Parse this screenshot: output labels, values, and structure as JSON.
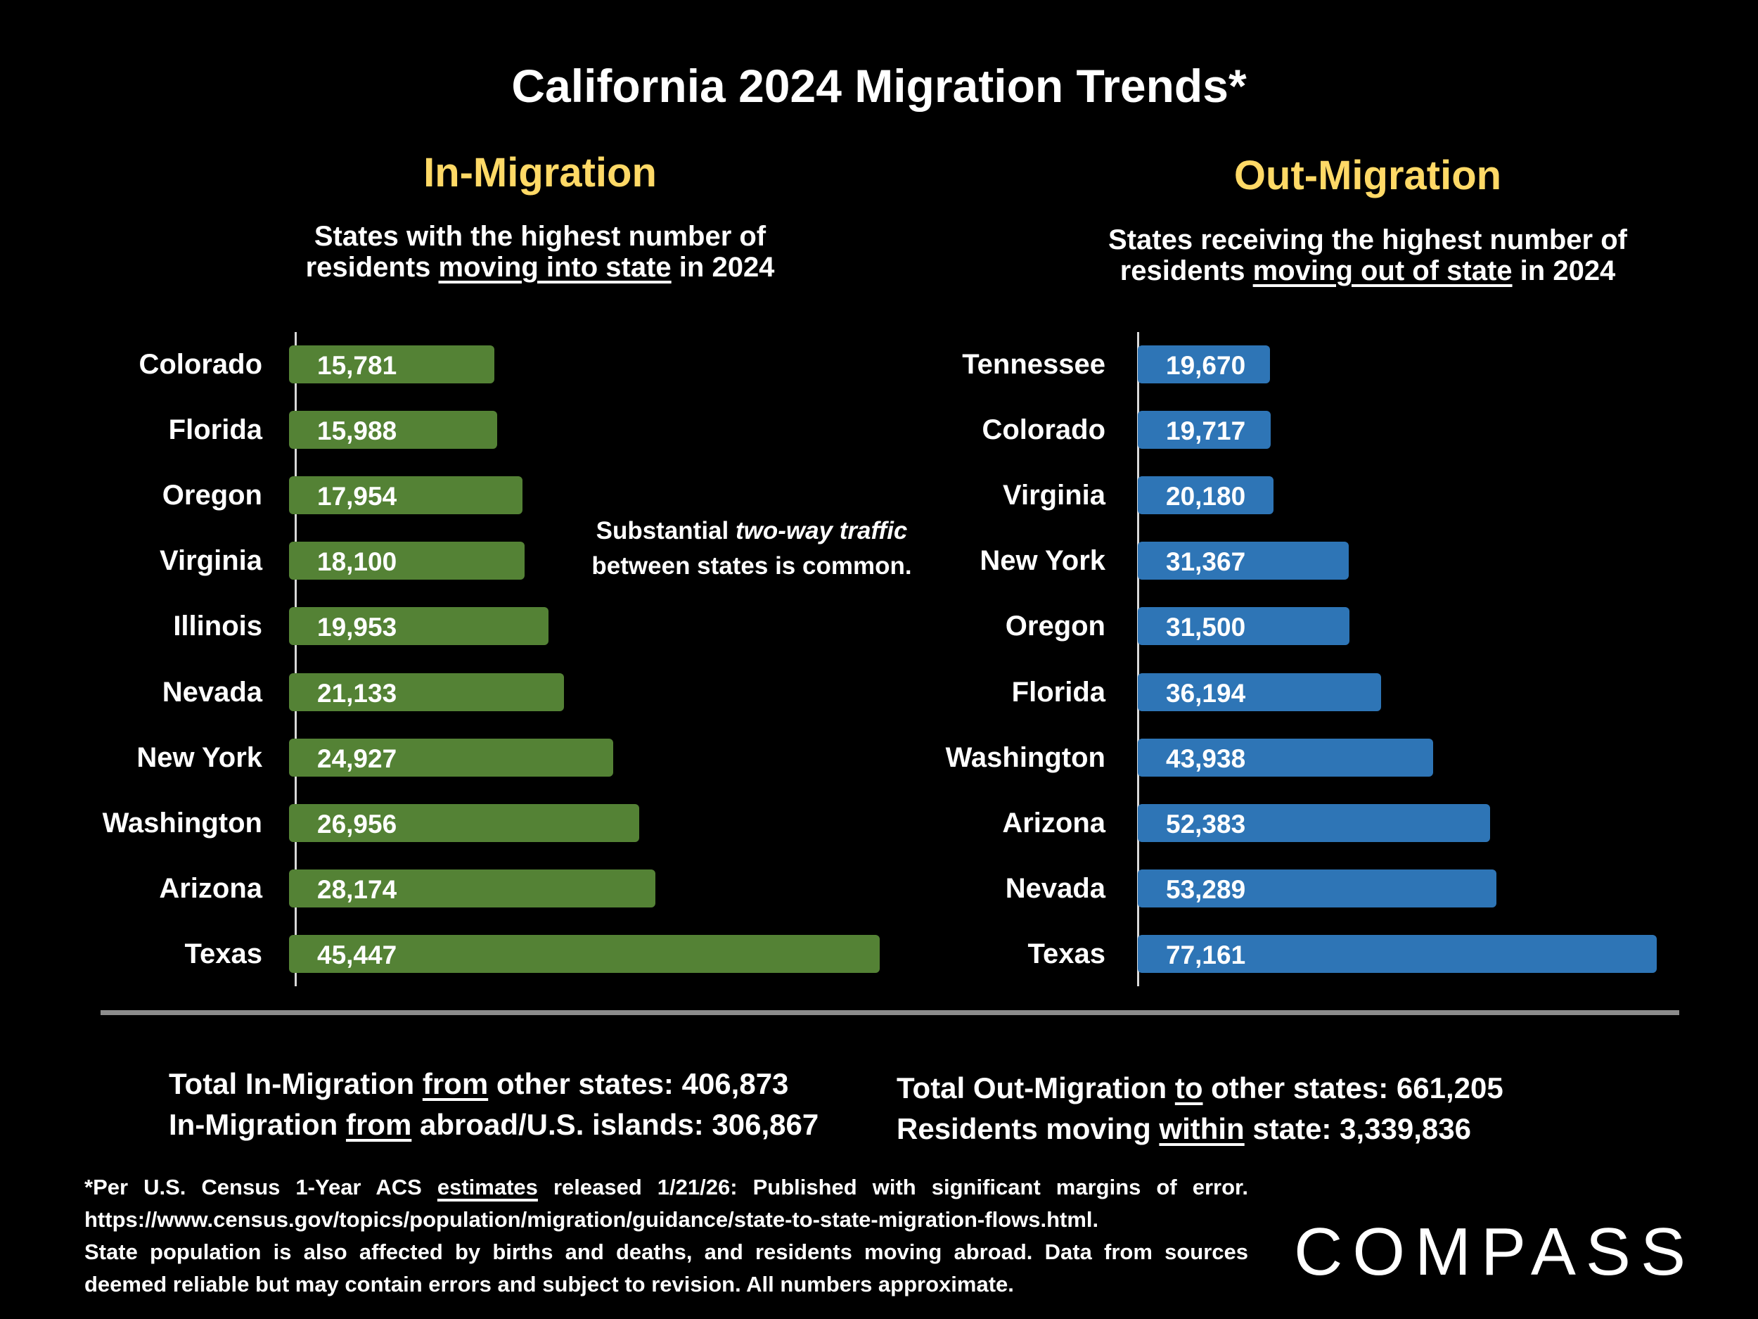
{
  "title": "California 2024 Migration Trends*",
  "annotation": {
    "pre": "Substantial ",
    "italic": "two-way traffic",
    "line2": "between states is common."
  },
  "chart_data": [
    {
      "type": "bar",
      "orientation": "horizontal",
      "title": "In-Migration",
      "subtitle": {
        "line1": "States with the highest number of",
        "pre": "residents ",
        "underlined": "moving into state",
        "post": " in 2024"
      },
      "categories": [
        "Colorado",
        "Florida",
        "Oregon",
        "Virginia",
        "Illinois",
        "Nevada",
        "New York",
        "Washington",
        "Arizona",
        "Texas"
      ],
      "values": [
        15781,
        15988,
        17954,
        18100,
        19953,
        21133,
        24927,
        26956,
        28174,
        45447
      ],
      "value_labels": [
        "15,781",
        "15,988",
        "17,954",
        "18,100",
        "19,953",
        "21,133",
        "24,927",
        "26,956",
        "28,174",
        "45,447"
      ],
      "color": "#548235",
      "grid": false
    },
    {
      "type": "bar",
      "orientation": "horizontal",
      "title": "Out-Migration",
      "subtitle": {
        "line1": "States receiving the highest number of",
        "pre": "residents ",
        "underlined": "moving out of state",
        "post": " in 2024"
      },
      "categories": [
        "Tennessee",
        "Colorado",
        "Virginia",
        "New York",
        "Oregon",
        "Florida",
        "Washington",
        "Arizona",
        "Nevada",
        "Texas"
      ],
      "values": [
        19670,
        19717,
        20180,
        31367,
        31500,
        36194,
        43938,
        52383,
        53289,
        77161
      ],
      "value_labels": [
        "19,670",
        "19,717",
        "20,180",
        "31,367",
        "31,500",
        "36,194",
        "43,938",
        "52,383",
        "53,289",
        "77,161"
      ],
      "color": "#2E75B6",
      "grid": false
    }
  ],
  "totals": {
    "in_total": {
      "pre": "Total In-Migration ",
      "u": "from",
      "post": " other states: 406,873"
    },
    "in_abroad": {
      "pre": "In-Migration ",
      "u": "from",
      "post": " abroad/U.S. islands: 306,867"
    },
    "out_total": {
      "pre": "Total Out-Migration ",
      "u": "to",
      "post": " other states: 661,205"
    },
    "within": {
      "pre": "Residents moving ",
      "u": "within",
      "post": " state:  3,339,836"
    }
  },
  "footnote": {
    "l1_pre": "*Per U.S. Census 1-Year ACS ",
    "l1_u": "estimates",
    "l1_post": " released 1/21/26: Published with significant margins of error.",
    "l2": "https://www.census.gov/topics/population/migration/guidance/state-to-state-migration-flows.html.",
    "l3": "State population is also affected by births and deaths, and residents moving abroad. Data from sources",
    "l4": "deemed reliable but may contain errors and subject to revision. All numbers approximate."
  },
  "logo": "COMPASS"
}
